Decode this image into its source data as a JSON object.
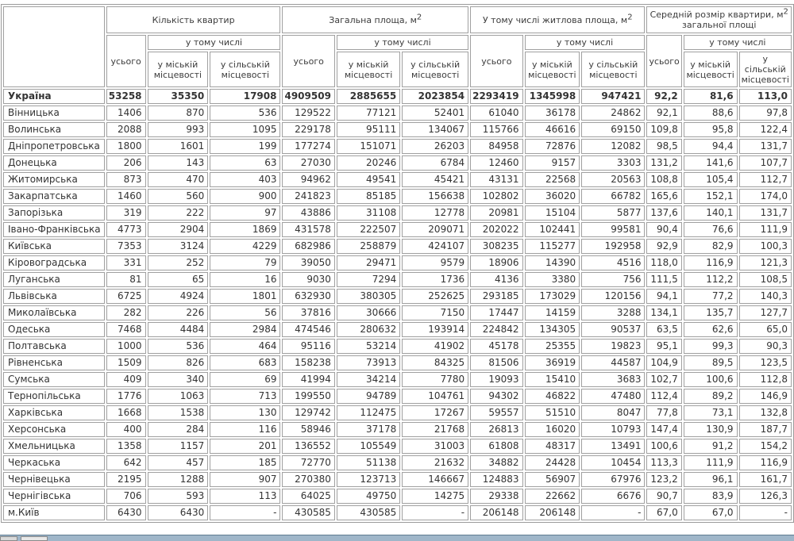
{
  "chart_data": {
    "type": "table",
    "header": {
      "region_label": "",
      "groups": [
        {
          "pre": "Кількість квартир",
          "sup": "",
          "post": ""
        },
        {
          "pre": "Загальна площа, м",
          "sup": "2",
          "post": ""
        },
        {
          "pre": "У тому числі житлова площа, м",
          "sup": "2",
          "post": ""
        },
        {
          "pre": "Середній розмір квартири, м",
          "sup": "2",
          "post": " загальної площі"
        }
      ],
      "total_label": "усього",
      "including_label": "у тому числі",
      "urban_label": "у міській місцевості",
      "rural_label": "у сільській місцевості"
    },
    "rows": [
      {
        "name": "Україна",
        "bold": true,
        "values": [
          "53258",
          "35350",
          "17908",
          "4909509",
          "2885655",
          "2023854",
          "2293419",
          "1345998",
          "947421",
          "92,2",
          "81,6",
          "113,0"
        ]
      },
      {
        "name": "Вінницька",
        "bold": false,
        "values": [
          "1406",
          "870",
          "536",
          "129522",
          "77121",
          "52401",
          "61040",
          "36178",
          "24862",
          "92,1",
          "88,6",
          "97,8"
        ]
      },
      {
        "name": "Волинська",
        "bold": false,
        "values": [
          "2088",
          "993",
          "1095",
          "229178",
          "95111",
          "134067",
          "115766",
          "46616",
          "69150",
          "109,8",
          "95,8",
          "122,4"
        ]
      },
      {
        "name": "Дніпропетровська",
        "bold": false,
        "values": [
          "1800",
          "1601",
          "199",
          "177274",
          "151071",
          "26203",
          "84958",
          "72876",
          "12082",
          "98,5",
          "94,4",
          "131,7"
        ]
      },
      {
        "name": "Донецька",
        "bold": false,
        "values": [
          "206",
          "143",
          "63",
          "27030",
          "20246",
          "6784",
          "12460",
          "9157",
          "3303",
          "131,2",
          "141,6",
          "107,7"
        ]
      },
      {
        "name": "Житомирська",
        "bold": false,
        "values": [
          "873",
          "470",
          "403",
          "94962",
          "49541",
          "45421",
          "43131",
          "22568",
          "20563",
          "108,8",
          "105,4",
          "112,7"
        ]
      },
      {
        "name": "Закарпатська",
        "bold": false,
        "values": [
          "1460",
          "560",
          "900",
          "241823",
          "85185",
          "156638",
          "102802",
          "36020",
          "66782",
          "165,6",
          "152,1",
          "174,0"
        ]
      },
      {
        "name": "Запорізька",
        "bold": false,
        "values": [
          "319",
          "222",
          "97",
          "43886",
          "31108",
          "12778",
          "20981",
          "15104",
          "5877",
          "137,6",
          "140,1",
          "131,7"
        ]
      },
      {
        "name": "Івано-Франківська",
        "bold": false,
        "values": [
          "4773",
          "2904",
          "1869",
          "431578",
          "222507",
          "209071",
          "202022",
          "102441",
          "99581",
          "90,4",
          "76,6",
          "111,9"
        ]
      },
      {
        "name": "Київська",
        "bold": false,
        "values": [
          "7353",
          "3124",
          "4229",
          "682986",
          "258879",
          "424107",
          "308235",
          "115277",
          "192958",
          "92,9",
          "82,9",
          "100,3"
        ]
      },
      {
        "name": "Кіровоградська",
        "bold": false,
        "values": [
          "331",
          "252",
          "79",
          "39050",
          "29471",
          "9579",
          "18906",
          "14390",
          "4516",
          "118,0",
          "116,9",
          "121,3"
        ]
      },
      {
        "name": "Луганська",
        "bold": false,
        "values": [
          "81",
          "65",
          "16",
          "9030",
          "7294",
          "1736",
          "4136",
          "3380",
          "756",
          "111,5",
          "112,2",
          "108,5"
        ]
      },
      {
        "name": "Львівська",
        "bold": false,
        "values": [
          "6725",
          "4924",
          "1801",
          "632930",
          "380305",
          "252625",
          "293185",
          "173029",
          "120156",
          "94,1",
          "77,2",
          "140,3"
        ]
      },
      {
        "name": "Миколаївська",
        "bold": false,
        "values": [
          "282",
          "226",
          "56",
          "37816",
          "30666",
          "7150",
          "17447",
          "14159",
          "3288",
          "134,1",
          "135,7",
          "127,7"
        ]
      },
      {
        "name": "Одеська",
        "bold": false,
        "values": [
          "7468",
          "4484",
          "2984",
          "474546",
          "280632",
          "193914",
          "224842",
          "134305",
          "90537",
          "63,5",
          "62,6",
          "65,0"
        ]
      },
      {
        "name": "Полтавська",
        "bold": false,
        "values": [
          "1000",
          "536",
          "464",
          "95116",
          "53214",
          "41902",
          "45178",
          "25355",
          "19823",
          "95,1",
          "99,3",
          "90,3"
        ]
      },
      {
        "name": "Рівненська",
        "bold": false,
        "values": [
          "1509",
          "826",
          "683",
          "158238",
          "73913",
          "84325",
          "81506",
          "36919",
          "44587",
          "104,9",
          "89,5",
          "123,5"
        ]
      },
      {
        "name": "Сумська",
        "bold": false,
        "values": [
          "409",
          "340",
          "69",
          "41994",
          "34214",
          "7780",
          "19093",
          "15410",
          "3683",
          "102,7",
          "100,6",
          "112,8"
        ]
      },
      {
        "name": "Тернопільська",
        "bold": false,
        "values": [
          "1776",
          "1063",
          "713",
          "199550",
          "94789",
          "104761",
          "94302",
          "46822",
          "47480",
          "112,4",
          "89,2",
          "146,9"
        ]
      },
      {
        "name": "Харківська",
        "bold": false,
        "values": [
          "1668",
          "1538",
          "130",
          "129742",
          "112475",
          "17267",
          "59557",
          "51510",
          "8047",
          "77,8",
          "73,1",
          "132,8"
        ]
      },
      {
        "name": "Херсонська",
        "bold": false,
        "values": [
          "400",
          "284",
          "116",
          "58946",
          "37178",
          "21768",
          "26813",
          "16020",
          "10793",
          "147,4",
          "130,9",
          "187,7"
        ]
      },
      {
        "name": "Хмельницька",
        "bold": false,
        "values": [
          "1358",
          "1157",
          "201",
          "136552",
          "105549",
          "31003",
          "61808",
          "48317",
          "13491",
          "100,6",
          "91,2",
          "154,2"
        ]
      },
      {
        "name": "Черкаська",
        "bold": false,
        "values": [
          "642",
          "457",
          "185",
          "72770",
          "51138",
          "21632",
          "34882",
          "24428",
          "10454",
          "113,3",
          "111,9",
          "116,9"
        ]
      },
      {
        "name": "Чернівецька",
        "bold": false,
        "values": [
          "2195",
          "1288",
          "907",
          "270380",
          "123713",
          "146667",
          "124883",
          "56907",
          "67976",
          "123,2",
          "96,1",
          "161,7"
        ]
      },
      {
        "name": "Чернігівська",
        "bold": false,
        "values": [
          "706",
          "593",
          "113",
          "64025",
          "49750",
          "14275",
          "29338",
          "22662",
          "6676",
          "90,7",
          "83,9",
          "126,3"
        ]
      },
      {
        "name": "м.Київ",
        "bold": false,
        "values": [
          "6430",
          "6430",
          "-",
          "430585",
          "430585",
          "-",
          "206148",
          "206148",
          "-",
          "67,0",
          "67,0",
          "-"
        ]
      }
    ]
  }
}
